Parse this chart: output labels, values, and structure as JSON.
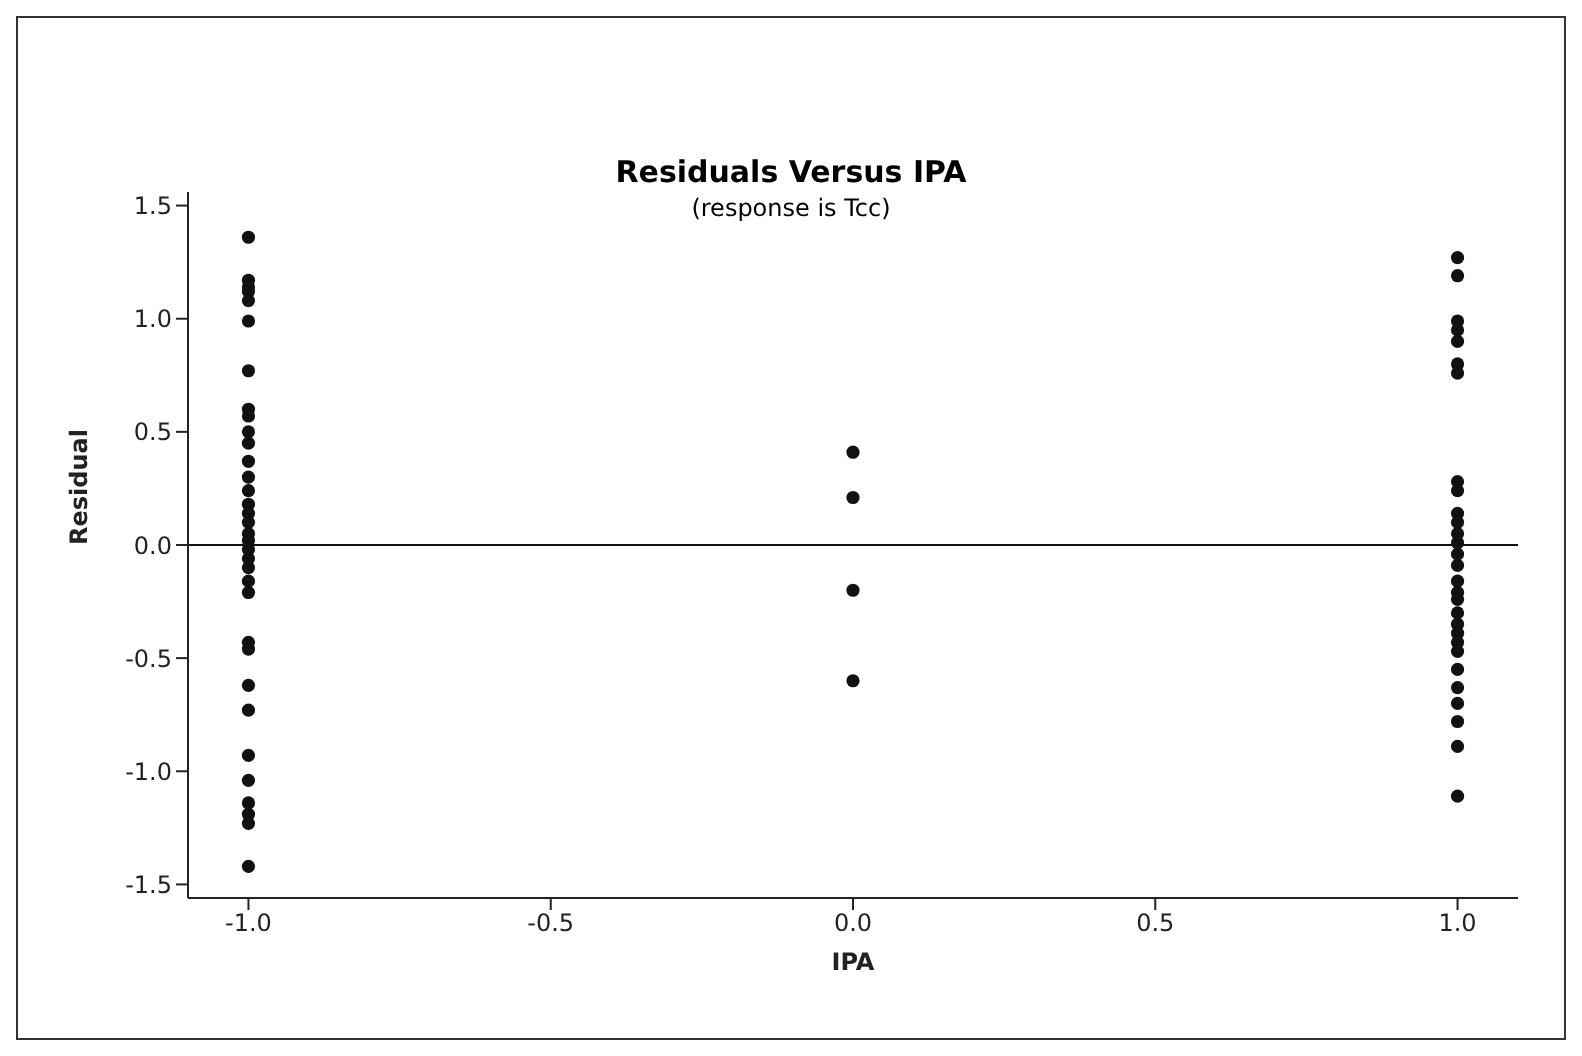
{
  "chart_data": {
    "type": "scatter",
    "title": "Residuals Versus IPA",
    "subtitle": "(response is Tcc)",
    "xlabel": "IPA",
    "ylabel": "Residual",
    "series": [
      {
        "color": "#111111",
        "x": [
          -1,
          -1,
          -1,
          -1,
          -1,
          -1,
          -1,
          -1,
          -1,
          -1,
          -1,
          -1,
          -1,
          -1,
          -1,
          -1,
          -1,
          -1,
          -1,
          -1,
          -1,
          -1,
          -1,
          -1,
          -1,
          -1,
          -1,
          -1,
          -1,
          -1,
          -1,
          -1,
          -1,
          -1,
          0,
          0,
          0,
          0,
          1,
          1,
          1,
          1,
          1,
          1,
          1,
          1,
          1,
          1,
          1,
          1,
          1,
          1,
          1,
          1,
          1,
          1,
          1,
          1,
          1,
          1,
          1,
          1,
          1,
          1,
          1,
          1,
          1
        ],
        "values": [
          1.36,
          1.17,
          1.14,
          1.12,
          1.08,
          0.99,
          0.77,
          0.6,
          0.57,
          0.5,
          0.45,
          0.37,
          0.3,
          0.24,
          0.18,
          0.14,
          0.1,
          0.05,
          0.02,
          -0.02,
          -0.06,
          -0.1,
          -0.16,
          -0.21,
          -0.43,
          -0.46,
          -0.62,
          -0.73,
          -0.93,
          -1.04,
          -1.14,
          -1.19,
          -1.23,
          -1.42,
          0.41,
          0.21,
          -0.2,
          -0.6,
          1.27,
          1.19,
          0.99,
          0.95,
          0.9,
          0.8,
          0.76,
          0.28,
          0.24,
          0.14,
          0.1,
          0.05,
          0.01,
          -0.04,
          -0.09,
          -0.16,
          -0.21,
          -0.24,
          -0.3,
          -0.35,
          -0.39,
          -0.43,
          -0.47,
          -0.55,
          -0.63,
          -0.7,
          -0.78,
          -0.89,
          -1.11
        ]
      }
    ],
    "xlim": [
      -1.1,
      1.1
    ],
    "xticks": [
      {
        "value": -1,
        "label": "-1.0"
      },
      {
        "value": -0.5,
        "label": "-0.5"
      },
      {
        "value": 0,
        "label": "0.0"
      },
      {
        "value": 0.5,
        "label": "0.5"
      },
      {
        "value": 1,
        "label": "1.0"
      }
    ],
    "ylim": [
      -1.56,
      1.56
    ],
    "yticks": [
      {
        "value": -1.5,
        "label": "-1.5"
      },
      {
        "value": -1,
        "label": "-1.0"
      },
      {
        "value": -0.5,
        "label": "-0.5"
      },
      {
        "value": 0,
        "label": "0.0"
      },
      {
        "value": 0.5,
        "label": "0.5"
      },
      {
        "value": 1,
        "label": "1.0"
      },
      {
        "value": 1.5,
        "label": "1.5"
      }
    ],
    "ref_lines": [
      {
        "axis": "y",
        "value": 0,
        "color": "#111111"
      }
    ],
    "marker": "circle",
    "grid": false,
    "legend": false
  }
}
